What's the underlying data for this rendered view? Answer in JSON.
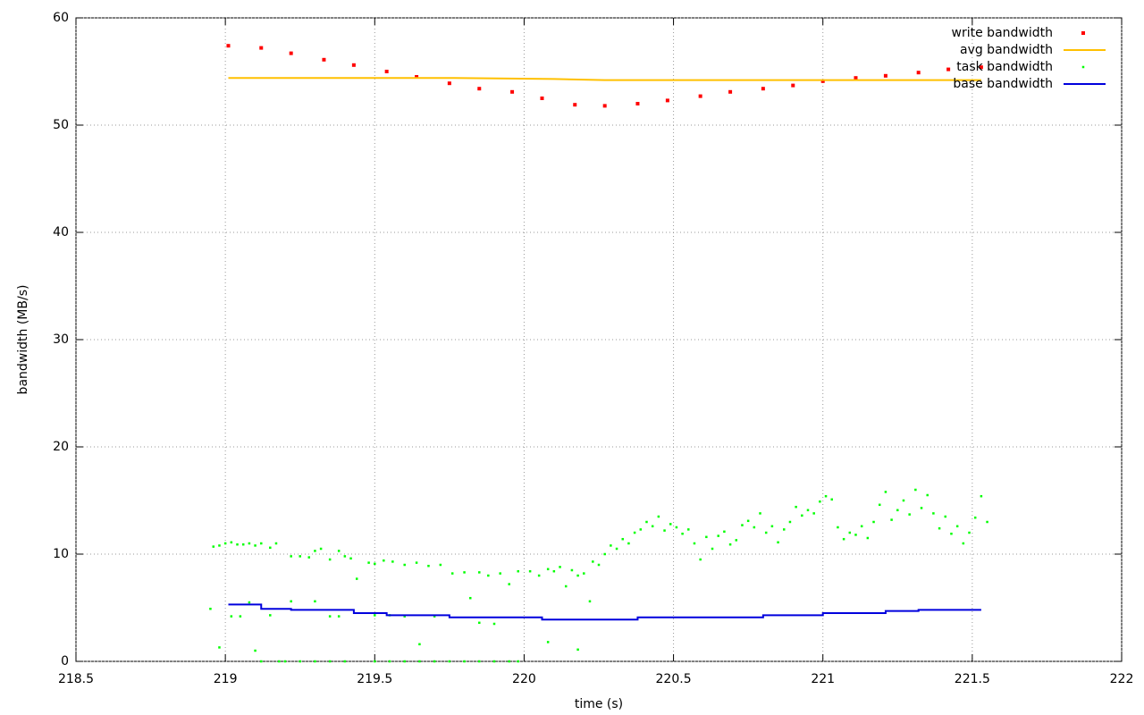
{
  "chart_data": {
    "type": "scatter",
    "x_label": "time (s)",
    "y_label": "bandwidth (MB/s)",
    "xlim": [
      218.5,
      222
    ],
    "ylim": [
      0,
      60
    ],
    "xticks": [
      218.5,
      219,
      219.5,
      220,
      220.5,
      221,
      221.5,
      222
    ],
    "yticks": [
      0,
      10,
      20,
      30,
      40,
      50,
      60
    ],
    "grid": true,
    "legend": "top-right",
    "series": [
      {
        "name": "write bandwidth",
        "color": "#ff0000",
        "style": "points",
        "x": [
          219.01,
          219.12,
          219.22,
          219.33,
          219.43,
          219.54,
          219.64,
          219.75,
          219.85,
          219.96,
          220.06,
          220.17,
          220.27,
          220.38,
          220.48,
          220.59,
          220.69,
          220.8,
          220.9,
          221.0,
          221.11,
          221.21,
          221.32,
          221.42,
          221.53
        ],
        "values": [
          57.4,
          57.2,
          56.7,
          56.1,
          55.6,
          55.0,
          54.5,
          53.9,
          53.4,
          53.1,
          52.5,
          51.9,
          51.8,
          52.0,
          52.3,
          52.7,
          53.1,
          53.4,
          53.7,
          54.1,
          54.4,
          54.6,
          54.9,
          55.2,
          55.4
        ]
      },
      {
        "name": "avg bandwidth",
        "color": "#ffc000",
        "style": "line",
        "x": [
          219.01,
          219.75,
          220.1,
          220.27,
          221.2,
          221.53
        ],
        "values": [
          54.4,
          54.4,
          54.3,
          54.2,
          54.2,
          54.2
        ]
      },
      {
        "name": "task bandwidth",
        "color": "#00ff00",
        "style": "points",
        "x": [
          218.95,
          218.96,
          218.98,
          219.0,
          219.02,
          219.04,
          219.06,
          219.08,
          219.1,
          219.12,
          219.15,
          219.17,
          218.98,
          219.02,
          219.05,
          219.08,
          219.1,
          219.12,
          219.15,
          219.18,
          219.2,
          219.22,
          219.25,
          219.28,
          219.3,
          219.32,
          219.35,
          219.38,
          219.4,
          219.42,
          219.44,
          219.22,
          219.3,
          219.35,
          219.38,
          219.25,
          219.3,
          219.35,
          219.4,
          219.48,
          219.5,
          219.53,
          219.56,
          219.6,
          219.64,
          219.68,
          219.72,
          219.5,
          219.55,
          219.6,
          219.65,
          219.7,
          219.5,
          219.55,
          219.6,
          219.65,
          219.7,
          219.75,
          219.76,
          219.8,
          219.82,
          219.85,
          219.88,
          219.92,
          219.95,
          219.98,
          219.85,
          219.9,
          219.8,
          219.85,
          219.9,
          219.95,
          219.98,
          220.02,
          220.05,
          220.08,
          220.1,
          220.12,
          220.14,
          220.16,
          220.18,
          220.2,
          220.08,
          220.18,
          220.22,
          220.23,
          220.25,
          220.27,
          220.29,
          220.31,
          220.33,
          220.35,
          220.37,
          220.39,
          220.41,
          220.43,
          220.45,
          220.47,
          220.49,
          220.51,
          220.53,
          220.55,
          220.57,
          220.59,
          220.61,
          220.63,
          220.65,
          220.67,
          220.69,
          220.71,
          220.73,
          220.75,
          220.77,
          220.79,
          220.81,
          220.83,
          220.85,
          220.87,
          220.89,
          220.91,
          220.93,
          220.95,
          220.97,
          220.99,
          221.01,
          221.03,
          221.05,
          221.07,
          221.09,
          221.11,
          221.13,
          221.15,
          221.17,
          221.19,
          221.21,
          221.23,
          221.25,
          221.27,
          221.29,
          221.31,
          221.33,
          221.35,
          221.37,
          221.39,
          221.41,
          221.43,
          221.45,
          221.47,
          221.49,
          221.51,
          221.53,
          221.55
        ],
        "values": [
          4.9,
          10.7,
          10.8,
          11.0,
          11.1,
          10.9,
          10.9,
          11.0,
          10.8,
          11.0,
          10.6,
          11.0,
          1.3,
          4.2,
          4.2,
          5.5,
          1.0,
          0,
          4.3,
          0,
          0,
          9.8,
          9.8,
          9.7,
          10.3,
          10.5,
          9.5,
          10.3,
          9.8,
          9.6,
          7.7,
          5.6,
          5.6,
          4.2,
          4.2,
          0,
          0,
          0,
          0,
          9.2,
          9.1,
          9.4,
          9.3,
          9.0,
          9.2,
          8.9,
          9.0,
          4.3,
          4.3,
          4.2,
          1.6,
          4.2,
          0,
          0,
          0,
          0,
          0,
          0,
          8.2,
          8.3,
          5.9,
          8.3,
          8.0,
          8.2,
          7.2,
          8.4,
          3.6,
          3.5,
          0,
          0,
          0,
          0,
          0,
          8.4,
          8.0,
          8.6,
          8.4,
          8.8,
          7.0,
          8.5,
          8.0,
          8.2,
          1.8,
          1.1,
          5.6,
          9.3,
          9.0,
          10.0,
          10.8,
          10.5,
          11.4,
          11.0,
          12.0,
          12.3,
          13.0,
          12.6,
          13.5,
          12.2,
          12.8,
          12.5,
          11.9,
          12.3,
          11.0,
          9.5,
          11.6,
          10.5,
          11.7,
          12.1,
          10.9,
          11.3,
          12.7,
          13.1,
          12.5,
          13.8,
          12.0,
          12.6,
          11.1,
          12.3,
          13.0,
          14.4,
          13.6,
          14.1,
          13.8,
          14.9,
          15.4,
          15.1,
          12.5,
          11.4,
          12.0,
          11.8,
          12.6,
          11.5,
          13.0,
          14.6,
          15.8,
          13.2,
          14.1,
          15.0,
          13.7,
          16.0,
          14.3,
          15.5,
          13.8,
          12.4,
          13.5,
          11.9,
          12.6,
          11.0,
          12.0,
          13.4,
          15.4,
          13.0
        ]
      },
      {
        "name": "base bandwidth",
        "color": "#0000dd",
        "style": "line",
        "x": [
          219.01,
          219.12,
          219.12,
          219.22,
          219.22,
          219.43,
          219.43,
          219.54,
          219.54,
          219.75,
          219.75,
          220.06,
          220.06,
          220.38,
          220.38,
          220.8,
          220.8,
          221.0,
          221.0,
          221.21,
          221.21,
          221.32,
          221.32,
          221.53
        ],
        "values": [
          5.3,
          5.3,
          4.9,
          4.9,
          4.8,
          4.8,
          4.5,
          4.5,
          4.3,
          4.3,
          4.1,
          4.1,
          3.9,
          3.9,
          4.1,
          4.1,
          4.3,
          4.3,
          4.5,
          4.5,
          4.7,
          4.7,
          4.8,
          4.8
        ]
      }
    ]
  }
}
